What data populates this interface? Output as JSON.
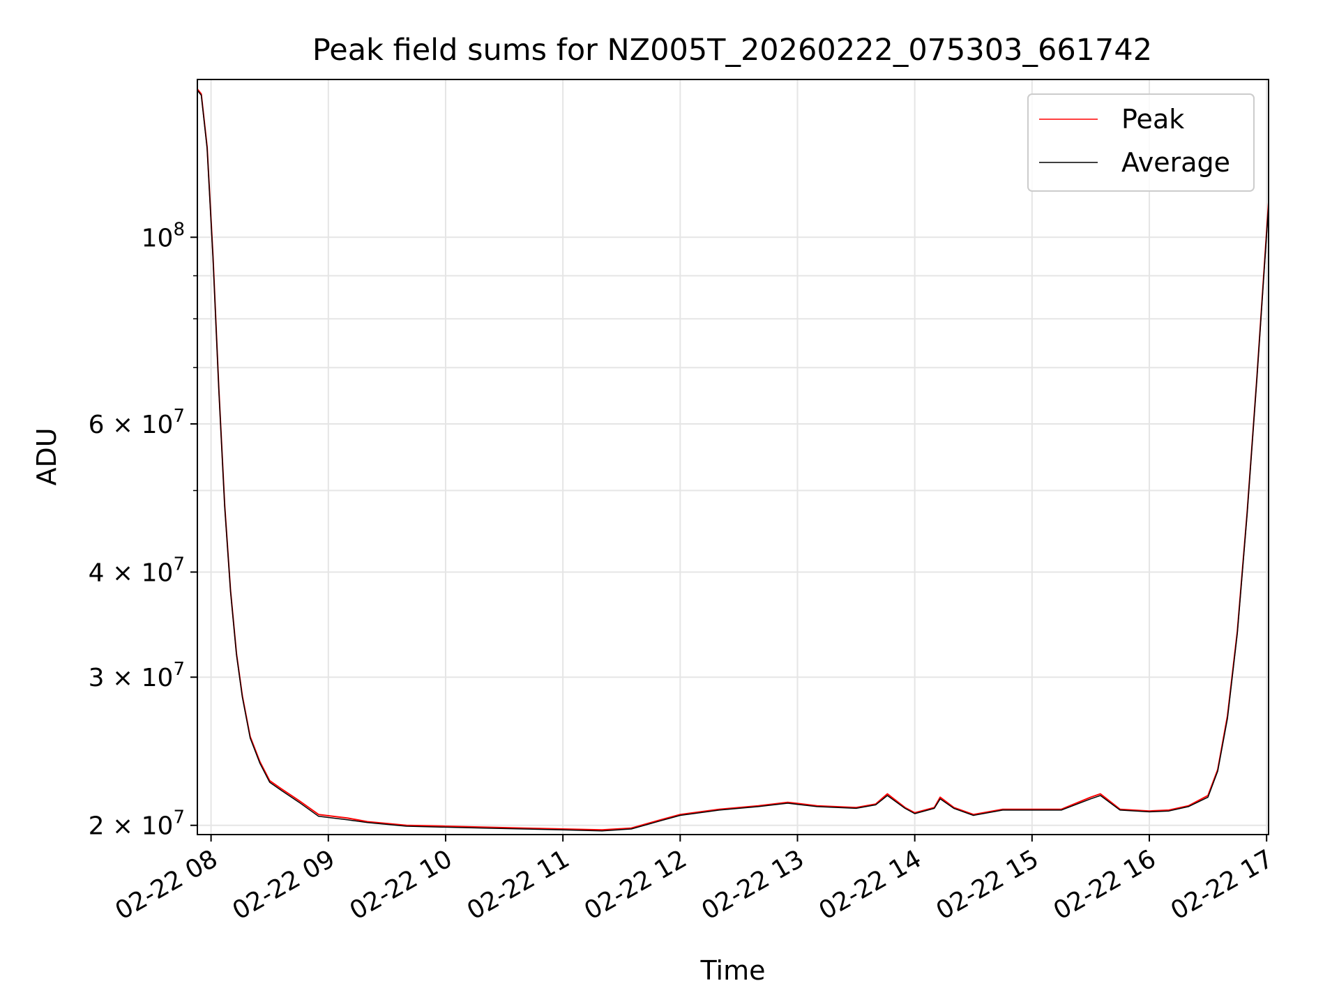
{
  "chart_data": {
    "type": "line",
    "title": "Peak field sums for NZ005T_20260222_075303_661742",
    "xlabel": "Time",
    "ylabel": "ADU",
    "yscale": "log",
    "grid": true,
    "legend_position": "top-right",
    "xlim": [
      "2026-02-22 07:53",
      "2026-02-22 17:01"
    ],
    "ylim": [
      19500000,
      154000000
    ],
    "x_ticks": [
      {
        "value": "2026-02-22 08:00",
        "label": "02-22 08"
      },
      {
        "value": "2026-02-22 09:00",
        "label": "02-22 09"
      },
      {
        "value": "2026-02-22 10:00",
        "label": "02-22 10"
      },
      {
        "value": "2026-02-22 11:00",
        "label": "02-22 11"
      },
      {
        "value": "2026-02-22 12:00",
        "label": "02-22 12"
      },
      {
        "value": "2026-02-22 13:00",
        "label": "02-22 13"
      },
      {
        "value": "2026-02-22 14:00",
        "label": "02-22 14"
      },
      {
        "value": "2026-02-22 15:00",
        "label": "02-22 15"
      },
      {
        "value": "2026-02-22 16:00",
        "label": "02-22 16"
      },
      {
        "value": "2026-02-22 17:00",
        "label": "02-22 17"
      }
    ],
    "y_ticks": [
      {
        "value": 20000000,
        "mantissa": "2",
        "base": "10",
        "exp": "7"
      },
      {
        "value": 30000000,
        "mantissa": "3",
        "base": "10",
        "exp": "7"
      },
      {
        "value": 40000000,
        "mantissa": "4",
        "base": "10",
        "exp": "7"
      },
      {
        "value": 60000000,
        "mantissa": "6",
        "base": "10",
        "exp": "7"
      },
      {
        "value": 100000000,
        "mantissa": "",
        "base": "10",
        "exp": "8"
      }
    ],
    "y_minor_ticks": [
      50000000,
      70000000,
      80000000,
      90000000
    ],
    "x": [
      "2026-02-22 07:53",
      "2026-02-22 07:55",
      "2026-02-22 07:58",
      "2026-02-22 08:01",
      "2026-02-22 08:04",
      "2026-02-22 08:07",
      "2026-02-22 08:10",
      "2026-02-22 08:13",
      "2026-02-22 08:16",
      "2026-02-22 08:20",
      "2026-02-22 08:25",
      "2026-02-22 08:30",
      "2026-02-22 08:36",
      "2026-02-22 08:45",
      "2026-02-22 08:55",
      "2026-02-22 09:10",
      "2026-02-22 09:20",
      "2026-02-22 09:40",
      "2026-02-22 10:00",
      "2026-02-22 10:20",
      "2026-02-22 10:40",
      "2026-02-22 11:00",
      "2026-02-22 11:20",
      "2026-02-22 11:35",
      "2026-02-22 11:50",
      "2026-02-22 12:00",
      "2026-02-22 12:20",
      "2026-02-22 12:40",
      "2026-02-22 12:55",
      "2026-02-22 13:10",
      "2026-02-22 13:30",
      "2026-02-22 13:40",
      "2026-02-22 13:46",
      "2026-02-22 13:55",
      "2026-02-22 14:00",
      "2026-02-22 14:10",
      "2026-02-22 14:13",
      "2026-02-22 14:20",
      "2026-02-22 14:30",
      "2026-02-22 14:45",
      "2026-02-22 15:00",
      "2026-02-22 15:15",
      "2026-02-22 15:30",
      "2026-02-22 15:35",
      "2026-02-22 15:45",
      "2026-02-22 16:00",
      "2026-02-22 16:10",
      "2026-02-22 16:20",
      "2026-02-22 16:30",
      "2026-02-22 16:35",
      "2026-02-22 16:40",
      "2026-02-22 16:45",
      "2026-02-22 16:50",
      "2026-02-22 16:55",
      "2026-02-22 17:01"
    ],
    "series": [
      {
        "name": "Peak",
        "color": "#ff0000",
        "values": [
          150000000,
          148000000,
          128000000,
          95000000,
          66000000,
          48000000,
          38000000,
          32000000,
          28500000,
          25500000,
          23800000,
          22600000,
          22100000,
          21400000,
          20600000,
          20400000,
          20200000,
          20000000,
          19950000,
          19900000,
          19850000,
          19800000,
          19750000,
          19850000,
          20300000,
          20600000,
          20900000,
          21100000,
          21300000,
          21100000,
          21000000,
          21200000,
          21800000,
          21000000,
          20700000,
          21000000,
          21600000,
          21000000,
          20600000,
          20900000,
          20900000,
          20900000,
          21600000,
          21800000,
          20900000,
          20800000,
          20850000,
          21100000,
          21700000,
          23300000,
          27000000,
          34000000,
          47000000,
          68000000,
          110000000
        ]
      },
      {
        "name": "Average",
        "color": "#000000",
        "values": [
          149500000,
          147500000,
          127500000,
          94500000,
          65800000,
          47800000,
          37900000,
          31900000,
          28400000,
          25400000,
          23700000,
          22500000,
          22000000,
          21300000,
          20500000,
          20300000,
          20150000,
          19950000,
          19900000,
          19850000,
          19800000,
          19750000,
          19700000,
          19800000,
          20250000,
          20550000,
          20850000,
          21050000,
          21250000,
          21050000,
          20950000,
          21150000,
          21700000,
          20950000,
          20650000,
          20950000,
          21500000,
          20950000,
          20550000,
          20850000,
          20850000,
          20850000,
          21500000,
          21700000,
          20850000,
          20750000,
          20800000,
          21050000,
          21600000,
          23200000,
          26800000,
          33800000,
          46800000,
          67800000,
          109000000
        ]
      }
    ]
  }
}
